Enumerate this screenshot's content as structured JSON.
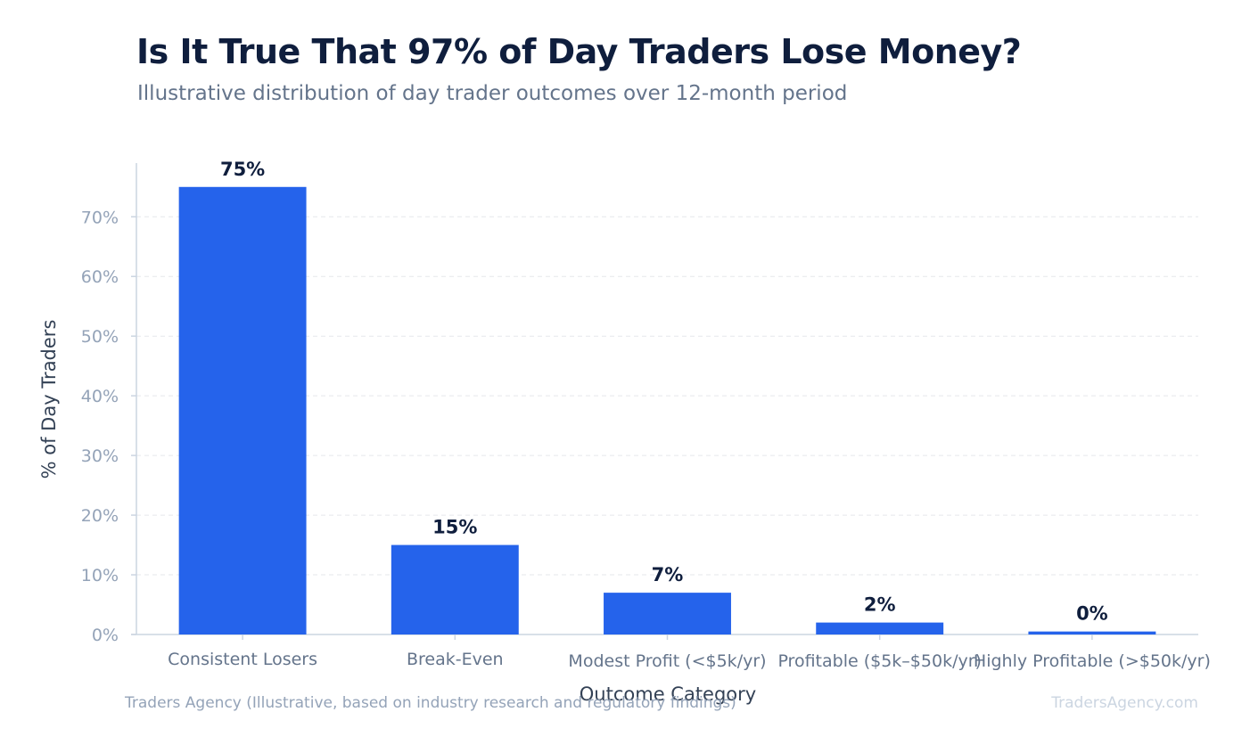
{
  "chart_data": {
    "type": "bar",
    "title": "Is It True That 97% of Day Traders Lose Money?",
    "subtitle": "Illustrative distribution of day trader outcomes over 12-month period",
    "xlabel": "Outcome Category",
    "ylabel": "% of Day Traders",
    "categories": [
      "Consistent Losers",
      "Break-Even",
      "Modest Profit (<$5k/yr)",
      "Profitable ($5k–$50k/yr)",
      "Highly Profitable (>$50k/yr)"
    ],
    "values": [
      75,
      15,
      7,
      2,
      0.5
    ],
    "value_labels": [
      "75%",
      "15%",
      "7%",
      "2%",
      "0%"
    ],
    "yticks": [
      0,
      10,
      20,
      30,
      40,
      50,
      60,
      70
    ],
    "ytick_labels": [
      "0%",
      "10%",
      "20%",
      "30%",
      "40%",
      "50%",
      "60%",
      "70%"
    ],
    "ylim": [
      0,
      79
    ],
    "grid": true,
    "bar_color": "#2563eb"
  },
  "footer": {
    "source": "Traders Agency (Illustrative, based on industry research and regulatory findings)",
    "watermark": "TradersAgency.com"
  }
}
